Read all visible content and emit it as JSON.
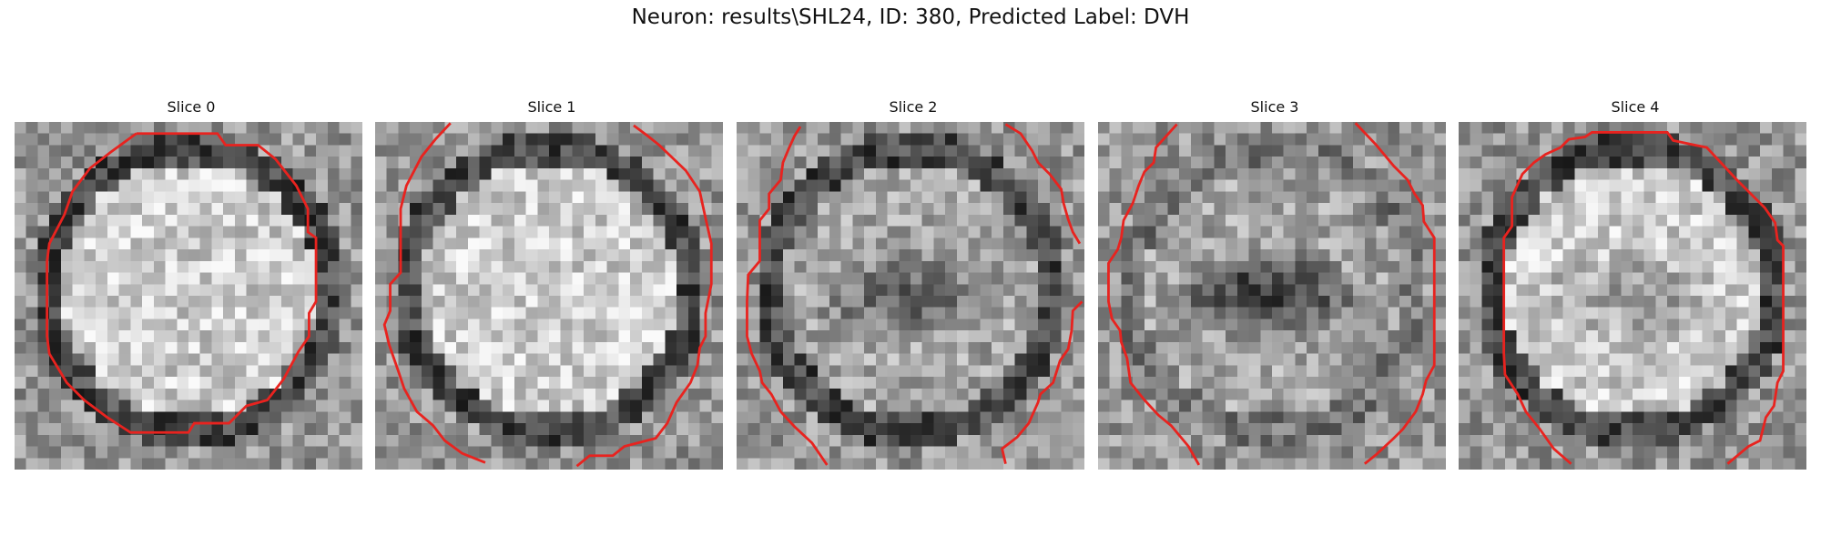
{
  "figure": {
    "title": "Neuron: results\\SHL24, ID: 380, Predicted Label: DVH"
  },
  "slices": [
    {
      "label": "Slice 0",
      "center": "bright",
      "ring": "dark",
      "dark_blob": 0.0
    },
    {
      "label": "Slice 1",
      "center": "bright",
      "ring": "dark",
      "dark_blob": 0.0
    },
    {
      "label": "Slice 2",
      "center": "mid",
      "ring": "dark",
      "dark_blob": 0.45
    },
    {
      "label": "Slice 3",
      "center": "mid",
      "ring": "faint",
      "dark_blob": 0.85
    },
    {
      "label": "Slice 4",
      "center": "bright",
      "ring": "dark",
      "dark_blob": 0.35
    }
  ],
  "colors": {
    "contour": "#e8231f",
    "background": "#ffffff"
  }
}
